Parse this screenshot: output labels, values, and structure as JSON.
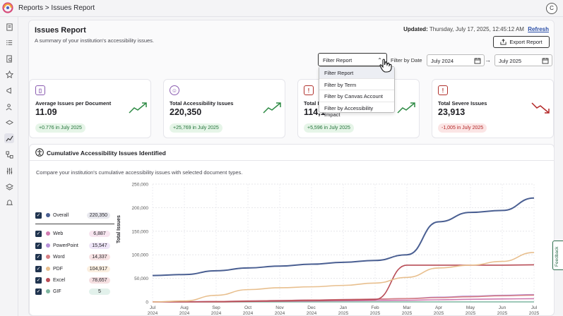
{
  "header": {
    "breadcrumb": "Reports > Issues Report",
    "user_initial": "C"
  },
  "report": {
    "title": "Issues Report",
    "subtitle": "A summary of your institution's accessibility issues.",
    "updated_label": "Updated:",
    "updated_value": "Thursday, July 17, 2025, 12:45:12 AM",
    "refresh_label": "Refresh",
    "export_label": "Export Report"
  },
  "filters": {
    "filter_select_value": "Filter Report",
    "filter_by_date_label": "Filter by Date",
    "date_from": "July 2024",
    "date_to": "July 2025",
    "arrow": "→",
    "dropdown_options": [
      "Filter Report",
      "Filter by Term",
      "Filter by Canvas Account",
      "Filter by Accessibility Impact"
    ]
  },
  "cards": [
    {
      "label": "Average Issues per Document",
      "value": "11.09",
      "change": "+0.776 in July 2025",
      "trend": "up",
      "color": "#23733a"
    },
    {
      "label": "Total Accessibility Issues",
      "value": "220,350",
      "change": "+25,769 in July 2025",
      "trend": "up",
      "color": "#23733a"
    },
    {
      "label": "Total M",
      "value": "114,1",
      "change": "+5,596 in July 2025",
      "trend": "up",
      "color": "#23733a"
    },
    {
      "label": "Total Severe Issues",
      "value": "23,913",
      "change": "-1,005 in July 2025",
      "trend": "down",
      "color": "#b32727"
    }
  ],
  "chart_section": {
    "title": "Cumulative Accessibility Issues Identified",
    "description": "Compare your institution's cumulative accessibility issues with selected document types.",
    "feedback_label": "Feedback"
  },
  "legend": [
    {
      "name": "Overall",
      "value": "220,350",
      "color": "#4a5f92",
      "pill": "#e8e8ee"
    },
    {
      "name": "Web",
      "value": "6,887",
      "color": "#d07ab0",
      "pill": "#f8e5f0"
    },
    {
      "name": "PowerPoint",
      "value": "15,547",
      "color": "#b690d8",
      "pill": "#efe6f8"
    },
    {
      "name": "Word",
      "value": "14,337",
      "color": "#d67f84",
      "pill": "#f8e3e4"
    },
    {
      "name": "PDF",
      "value": "104,917",
      "color": "#e8bf8e",
      "pill": "#fbefe0"
    },
    {
      "name": "Excel",
      "value": "78,657",
      "color": "#b84d57",
      "pill": "#f5dfe1"
    },
    {
      "name": "GIF",
      "value": "5",
      "color": "#7fb5a0",
      "pill": "#e2f1eb"
    }
  ],
  "chart_data": {
    "type": "line",
    "title": "Cumulative Accessibility Issues Identified",
    "ylabel": "Total Issues",
    "ylim": [
      0,
      250000
    ],
    "yticks": [
      "0",
      "50,000",
      "100,000",
      "150,000",
      "200,000",
      "250,000"
    ],
    "x": [
      "Jul 2024",
      "Aug 2024",
      "Sep 2024",
      "Oct 2024",
      "Nov 2024",
      "Dec 2024",
      "Jan 2025",
      "Feb 2025",
      "Mar 2025",
      "Apr 2025",
      "May 2025",
      "Jun 2025",
      "Jul 2025"
    ],
    "series": [
      {
        "name": "Overall",
        "color": "#4a5f92",
        "values": [
          56000,
          58000,
          66000,
          72000,
          76000,
          80000,
          84000,
          88000,
          100000,
          170000,
          190000,
          194000,
          220350
        ]
      },
      {
        "name": "PDF",
        "color": "#e8bf8e",
        "values": [
          0,
          2000,
          14000,
          26000,
          30000,
          32000,
          35000,
          40000,
          52000,
          72000,
          78000,
          86000,
          104917
        ]
      },
      {
        "name": "Excel",
        "color": "#b84d57",
        "values": [
          0,
          0,
          0,
          1000,
          2000,
          3000,
          4000,
          5000,
          78000,
          78000,
          78000,
          78000,
          78657
        ]
      },
      {
        "name": "Word",
        "color": "#d67f84",
        "values": [
          0,
          0,
          1000,
          2000,
          3000,
          4000,
          5000,
          6000,
          7000,
          9000,
          11000,
          13000,
          14337
        ]
      },
      {
        "name": "PowerPoint",
        "color": "#b690d8",
        "values": [
          0,
          500,
          1000,
          2000,
          3000,
          4000,
          5000,
          6000,
          7000,
          10000,
          12000,
          14000,
          15547
        ]
      },
      {
        "name": "Web",
        "color": "#d07ab0",
        "values": [
          0,
          200,
          500,
          1000,
          1500,
          2000,
          2500,
          3000,
          3500,
          4500,
          5500,
          6200,
          6887
        ]
      },
      {
        "name": "GIF",
        "color": "#7fb5a0",
        "values": [
          0,
          0,
          0,
          0,
          0,
          1,
          1,
          2,
          3,
          4,
          4,
          5,
          5
        ]
      }
    ]
  }
}
